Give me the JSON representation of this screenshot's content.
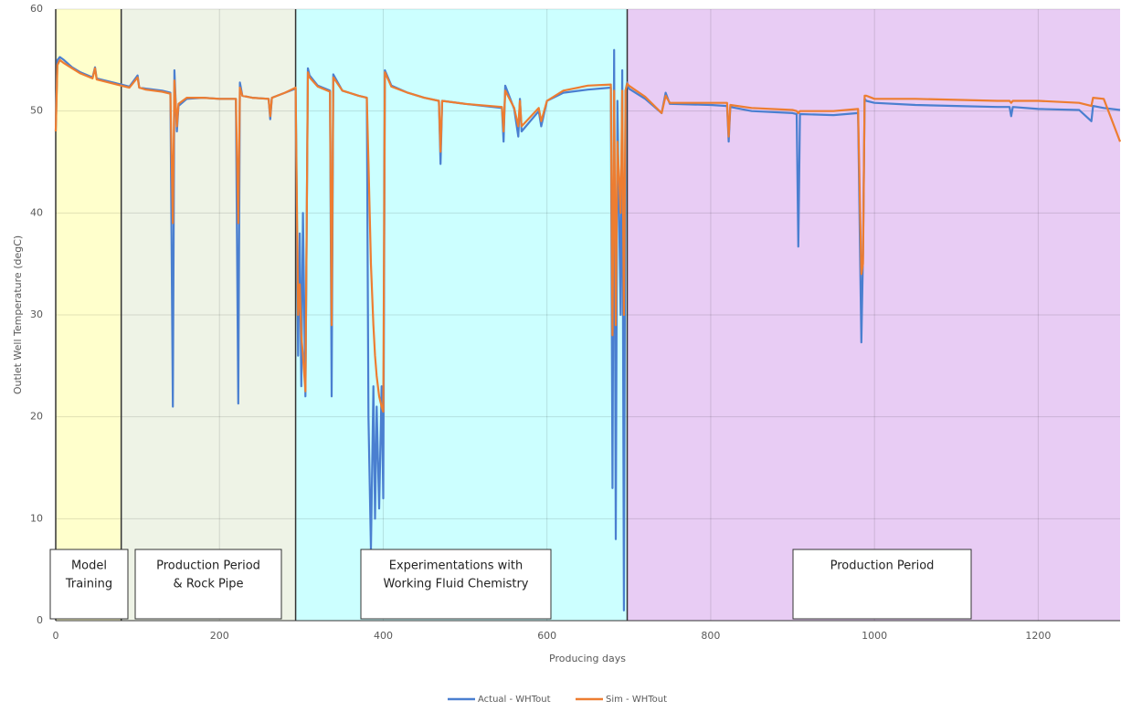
{
  "chart_data": {
    "type": "line",
    "y_label": "Outlet Well Temperature (degC)",
    "x_label": "Producing days",
    "xlim": [
      0,
      1300
    ],
    "xticks": [
      0,
      200,
      400,
      600,
      800,
      1000,
      1200
    ],
    "ylim": [
      0,
      60
    ],
    "yticks": [
      0,
      10,
      20,
      30,
      40,
      50,
      60
    ],
    "grid": true,
    "legend": "bottom",
    "regions": [
      {
        "start": 0,
        "end": 80,
        "color": "#ffffcc",
        "label": [
          "Model",
          "Training"
        ]
      },
      {
        "start": 80,
        "end": 293,
        "color": "#eef3e6",
        "label": [
          "Production Period",
          "& Rock Pipe"
        ]
      },
      {
        "start": 293,
        "end": 698,
        "color": "#ccffff",
        "label": [
          "Experimentations with",
          "Working Fluid Chemistry"
        ]
      },
      {
        "start": 698,
        "end": 1300,
        "color": "#e8ccf4",
        "label": [
          "Production Period"
        ]
      }
    ],
    "x": [
      0,
      2,
      5,
      10,
      20,
      30,
      45,
      48,
      50,
      60,
      80,
      90,
      100,
      102,
      110,
      130,
      140,
      143,
      145,
      148,
      150,
      160,
      180,
      200,
      220,
      223,
      225,
      228,
      240,
      260,
      262,
      264,
      280,
      293,
      296,
      298,
      300,
      302,
      305,
      308,
      310,
      320,
      335,
      337,
      339,
      350,
      370,
      380,
      382,
      385,
      388,
      390,
      392,
      395,
      398,
      400,
      402,
      410,
      430,
      450,
      468,
      470,
      472,
      500,
      545,
      547,
      549,
      560,
      565,
      567,
      569,
      590,
      593,
      600,
      620,
      650,
      678,
      680,
      682,
      684,
      686,
      690,
      692,
      694,
      696,
      698,
      700,
      720,
      740,
      745,
      750,
      800,
      820,
      822,
      824,
      850,
      900,
      905,
      907,
      909,
      950,
      980,
      984,
      986,
      988,
      990,
      1000,
      1050,
      1100,
      1150,
      1165,
      1167,
      1169,
      1200,
      1250,
      1265,
      1267,
      1280,
      1300
    ],
    "series": [
      {
        "name": "Actual - WHTout",
        "color": "#4a7fd0",
        "values": [
          48,
          55,
          55.3,
          55,
          54.3,
          53.8,
          53.3,
          54.3,
          53.2,
          53,
          52.6,
          52.4,
          53.5,
          52.3,
          52.2,
          52,
          51.8,
          21,
          54,
          48,
          50.5,
          51.2,
          51.3,
          51.2,
          51.2,
          21.3,
          52.8,
          51.5,
          51.3,
          51.2,
          49.2,
          51.3,
          51.8,
          52.2,
          26,
          38,
          23,
          40,
          22,
          54.2,
          53.5,
          52.5,
          52,
          22,
          53.6,
          52,
          51.5,
          51.3,
          20,
          7,
          23,
          10,
          21,
          11,
          23,
          12,
          54,
          52.5,
          51.8,
          51.3,
          51,
          44.8,
          51,
          50.7,
          50.3,
          47,
          52.5,
          50.2,
          47.5,
          51.2,
          48,
          50,
          48.5,
          51,
          51.8,
          52.1,
          52.3,
          13,
          56,
          8,
          51,
          30,
          54,
          1,
          52,
          52.8,
          52.2,
          51.2,
          49.8,
          51.8,
          50.7,
          50.6,
          50.5,
          47,
          50.4,
          50,
          49.8,
          49.7,
          36.7,
          49.7,
          49.6,
          49.8,
          27.3,
          36,
          51.2,
          51,
          50.8,
          50.6,
          50.5,
          50.4,
          50.4,
          49.5,
          50.4,
          50.2,
          50.1,
          49,
          50.5,
          50.3,
          50.1
        ]
      },
      {
        "name": "Sim - WHTout",
        "color": "#ed7d31",
        "values": [
          48,
          54.5,
          55,
          54.7,
          54.2,
          53.7,
          53.2,
          54.2,
          53.1,
          52.9,
          52.5,
          52.3,
          53.3,
          52.3,
          52.1,
          51.9,
          51.7,
          39,
          53,
          48.5,
          50.7,
          51.3,
          51.3,
          51.2,
          51.2,
          39,
          52.3,
          51.5,
          51.3,
          51.2,
          49.5,
          51.3,
          51.8,
          52.3,
          30,
          33,
          28,
          26,
          22.5,
          53.8,
          53.3,
          52.4,
          51.9,
          29,
          53.3,
          52,
          51.5,
          51.3,
          45,
          35,
          29,
          26,
          24,
          22,
          21,
          20.5,
          53.8,
          52.4,
          51.8,
          51.3,
          51,
          46,
          51,
          50.7,
          50.4,
          48,
          52,
          50.3,
          48.5,
          51,
          48.5,
          50.3,
          49,
          51,
          52,
          52.5,
          52.6,
          28,
          52,
          29,
          47,
          40,
          52,
          30,
          52,
          52.7,
          52.5,
          51.4,
          49.8,
          51.5,
          50.8,
          50.8,
          50.8,
          47.5,
          50.6,
          50.3,
          50.1,
          50,
          49.8,
          50,
          50,
          50.2,
          34,
          35,
          51.5,
          51.5,
          51.2,
          51.2,
          51.1,
          51,
          51,
          50.8,
          51,
          51,
          50.8,
          50.5,
          51.3,
          51.2,
          47
        ]
      }
    ]
  }
}
